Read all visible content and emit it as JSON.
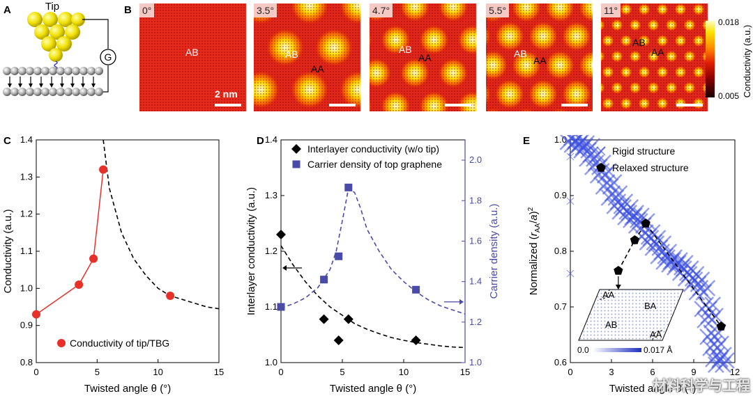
{
  "panels": {
    "a": "A",
    "b": "B",
    "c": "C",
    "d": "D",
    "e": "E"
  },
  "panel_a": {
    "tip_label": "Tip",
    "meter_label": "G"
  },
  "maps": [
    {
      "angle": "0°",
      "labels": [
        "AB"
      ],
      "scale_bar": "2 nm",
      "period": 0
    },
    {
      "angle": "3.5°",
      "labels": [
        "AB",
        "AA"
      ],
      "scale_bar": "",
      "period": 1
    },
    {
      "angle": "4.7°",
      "labels": [
        "AB",
        "AA"
      ],
      "scale_bar": "",
      "period": 2
    },
    {
      "angle": "5.5°",
      "labels": [
        "AB",
        "AA"
      ],
      "scale_bar": "",
      "period": 3
    },
    {
      "angle": "11°",
      "labels": [
        "AB",
        "AA"
      ],
      "scale_bar": "",
      "period": 4
    }
  ],
  "colorbar": {
    "max": "0.018",
    "min": "0.005",
    "label": "Conductivity (a.u.)",
    "colors": [
      "#1a0000",
      "#8a0000",
      "#e01e00",
      "#ff8c00",
      "#ffe000",
      "#ffffc0"
    ]
  },
  "chart_data": [
    {
      "type": "line",
      "panel": "C",
      "xlabel": "Twisted angle θ (°)",
      "ylabel": "Conductivity (a.u.)",
      "xlim": [
        0,
        15
      ],
      "ylim": [
        0.8,
        1.4
      ],
      "xticks": [
        "0",
        "5",
        "10",
        "15"
      ],
      "yticks": [
        "0.8",
        "0.9",
        "1.0",
        "1.1",
        "1.2",
        "1.3",
        "1.4"
      ],
      "series": [
        {
          "name": "Conductivity of tip/TBG",
          "x": [
            0,
            3.5,
            4.7,
            5.5,
            11
          ],
          "y": [
            0.93,
            1.01,
            1.08,
            1.32,
            0.98
          ],
          "color": "#e8302a"
        }
      ],
      "fit": {
        "x": [
          5.5,
          6,
          7,
          8,
          9,
          10,
          11,
          12,
          13,
          14,
          15
        ],
        "y": [
          1.4,
          1.27,
          1.15,
          1.08,
          1.035,
          1.0,
          0.98,
          0.97,
          0.96,
          0.95,
          0.945
        ]
      }
    },
    {
      "type": "scatter",
      "panel": "D",
      "xlabel": "Twisted angle θ (°)",
      "ylabel": "Interlayer conductivity (a.u.)",
      "y2label": "Carrier density (a.u.)",
      "xlim": [
        0,
        15
      ],
      "ylim": [
        1.0,
        1.4
      ],
      "y2lim": [
        1.0,
        2.1
      ],
      "xticks": [
        "0",
        "5",
        "10",
        "15"
      ],
      "yticks": [
        "1.0",
        "1.1",
        "1.2",
        "1.3",
        "1.4"
      ],
      "y2ticks": [
        "1.0",
        "1.2",
        "1.4",
        "1.6",
        "1.8",
        "2.0"
      ],
      "series": [
        {
          "name": "Interlayer conductivity (w/o tip)",
          "x": [
            0,
            3.5,
            4.7,
            5.5,
            11
          ],
          "y": [
            1.23,
            1.078,
            1.04,
            1.078,
            1.04
          ],
          "color": "#000000",
          "marker": "diamond"
        },
        {
          "name": "Carrier density of top graphene",
          "x": [
            0,
            3.5,
            4.7,
            5.5,
            11
          ],
          "y": [
            1.275,
            1.41,
            1.525,
            1.865,
            1.36
          ],
          "color": "#4a4aa8",
          "marker": "square",
          "axis": "right"
        }
      ],
      "fit_black": {
        "x": [
          0,
          1,
          2,
          3,
          4,
          5,
          6,
          7,
          8,
          9,
          10,
          11,
          12,
          13,
          14,
          15
        ],
        "y": [
          1.21,
          1.175,
          1.145,
          1.12,
          1.1,
          1.085,
          1.07,
          1.06,
          1.052,
          1.045,
          1.04,
          1.036,
          1.033,
          1.03,
          1.028,
          1.027
        ]
      },
      "fit_blue": {
        "x": [
          0,
          1,
          2,
          3,
          4,
          4.5,
          5,
          5.5,
          6,
          6.5,
          7,
          8,
          9,
          10,
          11,
          12,
          13,
          14,
          15
        ],
        "y": [
          1.27,
          1.29,
          1.32,
          1.37,
          1.46,
          1.55,
          1.7,
          1.86,
          1.84,
          1.76,
          1.66,
          1.55,
          1.46,
          1.4,
          1.35,
          1.31,
          1.28,
          1.26,
          1.24
        ]
      }
    },
    {
      "type": "scatter",
      "panel": "E",
      "xlabel": "Twisted angle θ (°)",
      "ylabel": "Normalized (r_AA/a)²",
      "xlim": [
        0,
        12
      ],
      "ylim": [
        0.6,
        1.0
      ],
      "xticks": [
        "0",
        "3",
        "6",
        "9",
        "12"
      ],
      "yticks": [
        "0.6",
        "0.7",
        "0.8",
        "0.9",
        "1.0"
      ],
      "series": [
        {
          "name": "Rigid structure",
          "x": [
            0,
            0,
            0,
            0.2,
            0.5,
            0.8,
            1.2,
            1.6,
            2,
            2.4,
            2.8,
            3.2,
            3.6,
            4,
            4.4,
            4.8,
            5.2,
            5.6,
            6,
            6.4,
            6.8,
            7.2,
            7.6,
            8,
            8.4,
            8.8,
            9.2,
            9.6,
            10,
            10.2,
            10.4,
            10.6,
            10.8,
            11
          ],
          "y": [
            0.97,
            0.89,
            0.76,
            1.0,
            0.995,
            0.99,
            0.985,
            0.97,
            0.955,
            0.94,
            0.92,
            0.9,
            0.885,
            0.875,
            0.865,
            0.86,
            0.85,
            0.83,
            0.82,
            0.81,
            0.795,
            0.785,
            0.78,
            0.775,
            0.765,
            0.755,
            0.745,
            0.73,
            0.7,
            0.68,
            0.65,
            0.63,
            0.61,
            0.6
          ],
          "color": "#3a4ee0",
          "marker": "x"
        },
        {
          "name": "Relaxed structure",
          "x": [
            3.5,
            4.7,
            5.5,
            11
          ],
          "y": [
            0.765,
            0.82,
            0.85,
            0.665
          ],
          "color": "#000000",
          "marker": "pentagon"
        }
      ],
      "inset": {
        "labels": [
          "AA",
          "BA",
          "AB",
          "AA"
        ],
        "scale_min": "0.0",
        "scale_max": "0.017 Å"
      }
    }
  ],
  "watermark": "材料科学与工程"
}
